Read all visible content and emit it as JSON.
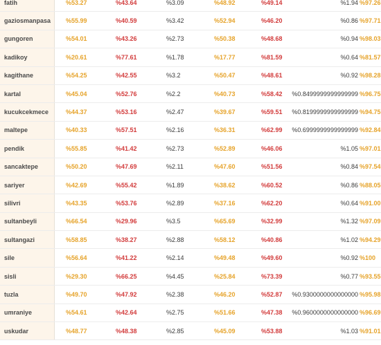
{
  "rows": [
    {
      "district": "fatih",
      "v1": "%53.27",
      "v2": "%43.64",
      "v3": "%3.09",
      "v4": "%48.92",
      "v5": "%49.14",
      "v6": "%1.94",
      "v7": "%97.26"
    },
    {
      "district": "gaziosmanpasa",
      "v1": "%55.99",
      "v2": "%40.59",
      "v3": "%3.42",
      "v4": "%52.94",
      "v5": "%46.20",
      "v6": "%0.86",
      "v7": "%97.71"
    },
    {
      "district": "gungoren",
      "v1": "%54.01",
      "v2": "%43.26",
      "v3": "%2.73",
      "v4": "%50.38",
      "v5": "%48.68",
      "v6": "%0.94",
      "v7": "%98.03"
    },
    {
      "district": "kadikoy",
      "v1": "%20.61",
      "v2": "%77.61",
      "v3": "%1.78",
      "v4": "%17.77",
      "v5": "%81.59",
      "v6": "%0.64",
      "v7": "%81.57"
    },
    {
      "district": "kagithane",
      "v1": "%54.25",
      "v2": "%42.55",
      "v3": "%3.2",
      "v4": "%50.47",
      "v5": "%48.61",
      "v6": "%0.92",
      "v7": "%98.28"
    },
    {
      "district": "kartal",
      "v1": "%45.04",
      "v2": "%52.76",
      "v3": "%2.2",
      "v4": "%40.73",
      "v5": "%58.42",
      "v6": "%0.8499999999999999",
      "v7": "%96.75"
    },
    {
      "district": "kucukcekmece",
      "v1": "%44.37",
      "v2": "%53.16",
      "v3": "%2.47",
      "v4": "%39.67",
      "v5": "%59.51",
      "v6": "%0.8199999999999999",
      "v7": "%94.75"
    },
    {
      "district": "maltepe",
      "v1": "%40.33",
      "v2": "%57.51",
      "v3": "%2.16",
      "v4": "%36.31",
      "v5": "%62.99",
      "v6": "%0.6999999999999999",
      "v7": "%92.84"
    },
    {
      "district": "pendik",
      "v1": "%55.85",
      "v2": "%41.42",
      "v3": "%2.73",
      "v4": "%52.89",
      "v5": "%46.06",
      "v6": "%1.05",
      "v7": "%97.01"
    },
    {
      "district": "sancaktepe",
      "v1": "%50.20",
      "v2": "%47.69",
      "v3": "%2.11",
      "v4": "%47.60",
      "v5": "%51.56",
      "v6": "%0.84",
      "v7": "%97.54"
    },
    {
      "district": "sariyer",
      "v1": "%42.69",
      "v2": "%55.42",
      "v3": "%1.89",
      "v4": "%38.62",
      "v5": "%60.52",
      "v6": "%0.86",
      "v7": "%88.05"
    },
    {
      "district": "silivri",
      "v1": "%43.35",
      "v2": "%53.76",
      "v3": "%2.89",
      "v4": "%37.16",
      "v5": "%62.20",
      "v6": "%0.64",
      "v7": "%91.00"
    },
    {
      "district": "sultanbeyli",
      "v1": "%66.54",
      "v2": "%29.96",
      "v3": "%3.5",
      "v4": "%65.69",
      "v5": "%32.99",
      "v6": "%1.32",
      "v7": "%97.09"
    },
    {
      "district": "sultangazi",
      "v1": "%58.85",
      "v2": "%38.27",
      "v3": "%2.88",
      "v4": "%58.12",
      "v5": "%40.86",
      "v6": "%1.02",
      "v7": "%94.29"
    },
    {
      "district": "sile",
      "v1": "%56.64",
      "v2": "%41.22",
      "v3": "%2.14",
      "v4": "%49.48",
      "v5": "%49.60",
      "v6": "%0.92",
      "v7": "%100"
    },
    {
      "district": "sisli",
      "v1": "%29.30",
      "v2": "%66.25",
      "v3": "%4.45",
      "v4": "%25.84",
      "v5": "%73.39",
      "v6": "%0.77",
      "v7": "%93.55"
    },
    {
      "district": "tuzla",
      "v1": "%49.70",
      "v2": "%47.92",
      "v3": "%2.38",
      "v4": "%46.20",
      "v5": "%52.87",
      "v6": "%0.9300000000000000",
      "v7": "%95.98"
    },
    {
      "district": "umraniye",
      "v1": "%54.61",
      "v2": "%42.64",
      "v3": "%2.75",
      "v4": "%51.66",
      "v5": "%47.38",
      "v6": "%0.9600000000000000",
      "v7": "%96.69"
    },
    {
      "district": "uskudar",
      "v1": "%48.77",
      "v2": "%48.38",
      "v3": "%2.85",
      "v4": "%45.09",
      "v5": "%53.88",
      "v6": "%1.03",
      "v7": "%91.01"
    }
  ]
}
